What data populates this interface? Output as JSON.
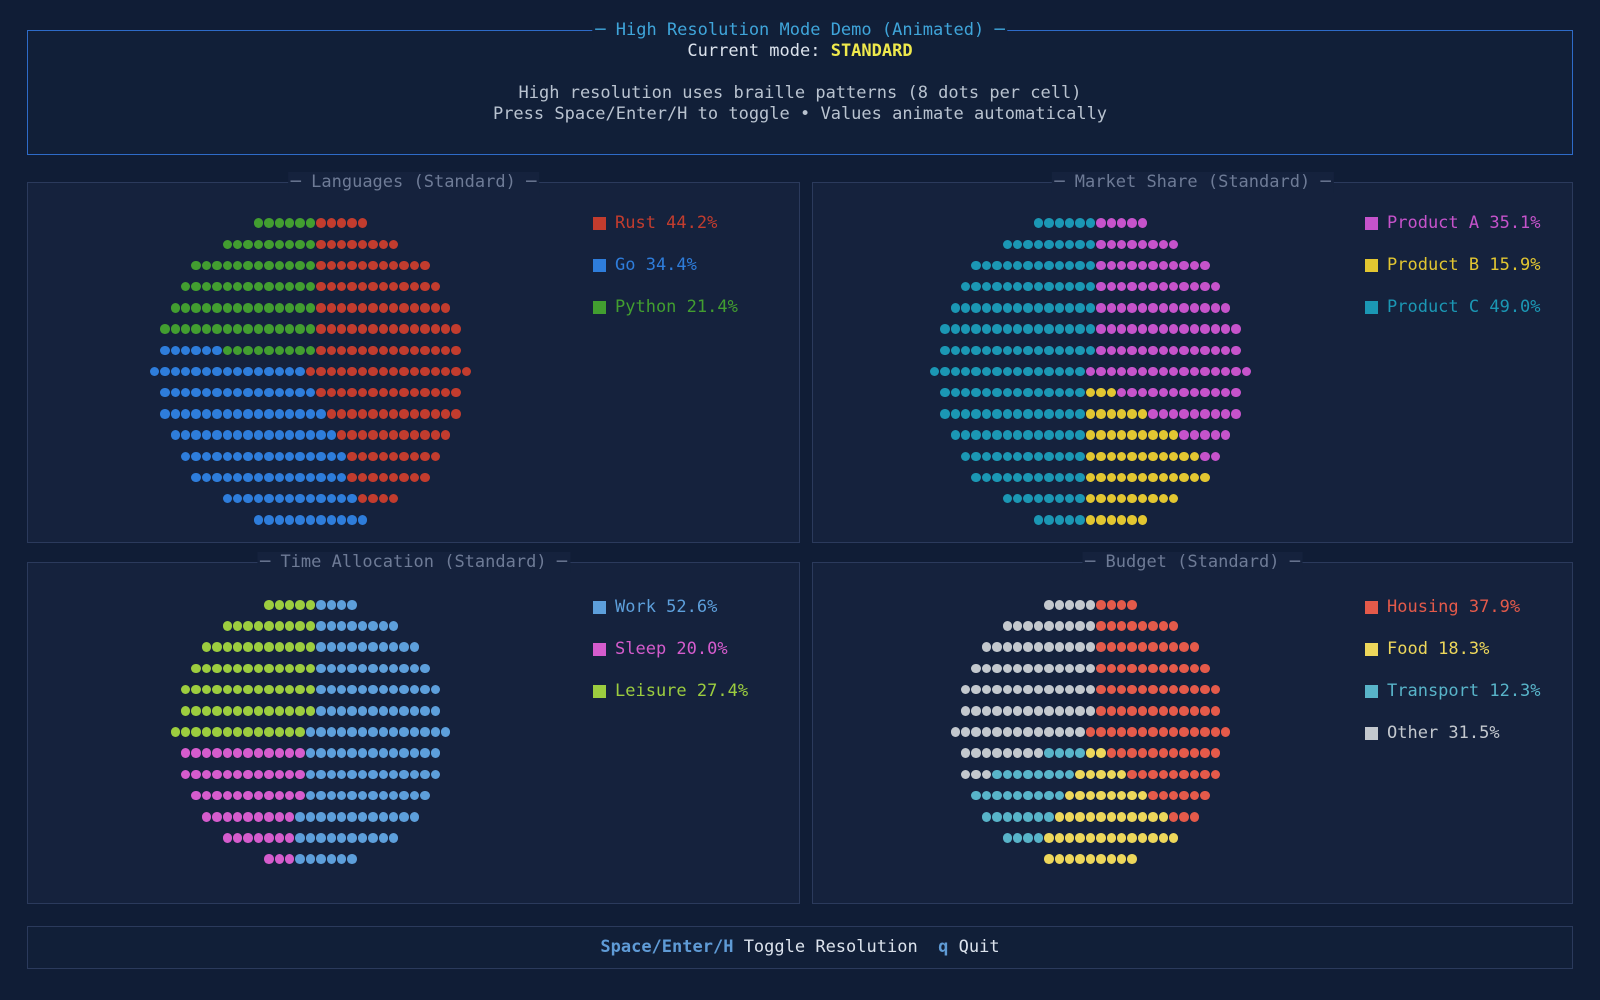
{
  "header": {
    "title": "High Resolution Mode Demo (Animated)",
    "mode_label": "Current mode: ",
    "mode_value": "STANDARD",
    "info_line1": "High resolution uses braille patterns (8 dots per cell)",
    "info_line2": "Press Space/Enter/H to toggle • Values animate automatically"
  },
  "footer": {
    "key1": "Space/Enter/H",
    "action1": "Toggle Resolution",
    "key2": "q",
    "action2": "Quit"
  },
  "colors": {
    "background": "#101d36",
    "panel_background": "#15223d",
    "header_border": "#2e6bc8",
    "header_title": "#3fa5da",
    "panel_border": "#2b3a5c",
    "panel_title": "#6e7b96",
    "body_text": "#dce3ed",
    "dim_text": "#b9c3d0",
    "mode_value": "#efe94c",
    "footer_key": "#5f9bd6"
  },
  "chart_data": [
    {
      "id": "languages",
      "type": "pie",
      "title": "Languages (Standard)",
      "legend_position": "right",
      "series": [
        {
          "name": "Rust",
          "value": 44.2,
          "color": "#c23c2e"
        },
        {
          "name": "Go",
          "value": 34.4,
          "color": "#2e7ddb"
        },
        {
          "name": "Python",
          "value": 21.4,
          "color": "#429e30"
        }
      ]
    },
    {
      "id": "market-share",
      "type": "pie",
      "title": "Market Share (Standard)",
      "legend_position": "right",
      "series": [
        {
          "name": "Product A",
          "value": 35.1,
          "color": "#c653cb"
        },
        {
          "name": "Product B",
          "value": 15.9,
          "color": "#e2c631"
        },
        {
          "name": "Product C",
          "value": 49.0,
          "color": "#1b97b4"
        }
      ]
    },
    {
      "id": "time-allocation",
      "type": "pie",
      "title": "Time Allocation (Standard)",
      "legend_position": "right",
      "series": [
        {
          "name": "Work",
          "value": 52.6,
          "color": "#5d9fdb"
        },
        {
          "name": "Sleep",
          "value": 20.0,
          "color": "#d55ccd"
        },
        {
          "name": "Leisure",
          "value": 27.4,
          "color": "#9ccd3f"
        }
      ]
    },
    {
      "id": "budget",
      "type": "pie",
      "title": "Budget (Standard)",
      "legend_position": "right",
      "series": [
        {
          "name": "Housing",
          "value": 37.9,
          "color": "#e45a4a"
        },
        {
          "name": "Food",
          "value": 18.3,
          "color": "#edd75b"
        },
        {
          "name": "Transport",
          "value": 12.3,
          "color": "#58b4c9"
        },
        {
          "name": "Other",
          "value": 31.5,
          "color": "#c3c8ce"
        }
      ]
    }
  ]
}
